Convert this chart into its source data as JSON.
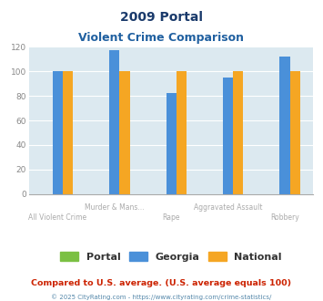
{
  "title_line1": "2009 Portal",
  "title_line2": "Violent Crime Comparison",
  "categories": [
    "All Violent Crime",
    "Murder & Mans...",
    "Rape",
    "Aggravated Assault",
    "Robbery"
  ],
  "series": {
    "Portal": [
      0,
      0,
      0,
      0,
      0
    ],
    "Georgia": [
      100,
      117,
      82,
      95,
      112
    ],
    "National": [
      100,
      100,
      100,
      100,
      100
    ]
  },
  "colors": {
    "Portal": "#7bc043",
    "Georgia": "#4a90d9",
    "National": "#f5a623"
  },
  "ylim": [
    0,
    120
  ],
  "yticks": [
    0,
    20,
    40,
    60,
    80,
    100,
    120
  ],
  "bg_color": "#dce9f0",
  "footnote1": "Compared to U.S. average. (U.S. average equals 100)",
  "footnote2": "© 2025 CityRating.com - https://www.cityrating.com/crime-statistics/",
  "title_color": "#1a3a6b",
  "subtitle_color": "#2060a0",
  "footnote1_color": "#cc2200",
  "footnote2_color": "#5588aa"
}
